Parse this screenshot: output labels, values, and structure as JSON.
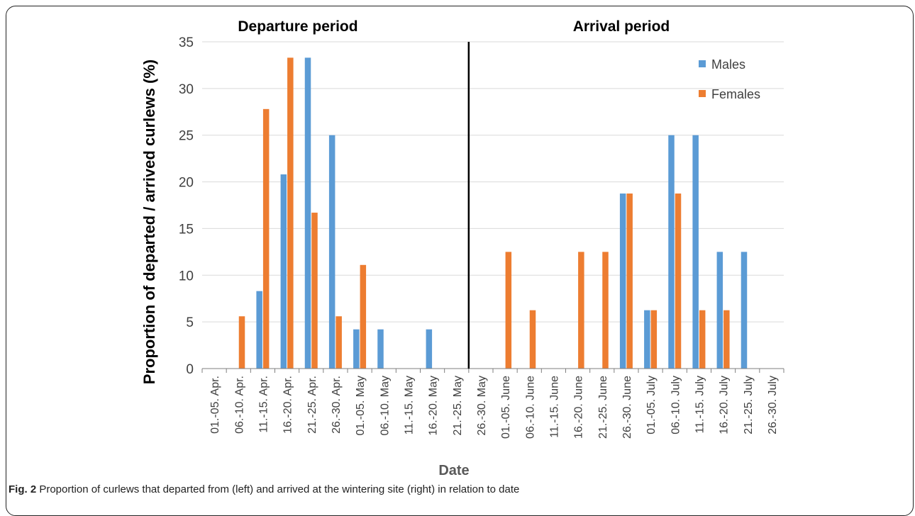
{
  "chart_data": {
    "type": "bar",
    "panel_labels": [
      "Departure period",
      "Arrival period"
    ],
    "ylabel": "Proportion of departed / arrived curlews (%)",
    "xlabel": "Date",
    "ylim": [
      0,
      35
    ],
    "yticks": [
      0,
      5,
      10,
      15,
      20,
      25,
      30,
      35
    ],
    "grid": true,
    "legend_position": "top-right",
    "categories": [
      "01.-05. Apr.",
      "06.-10. Apr.",
      "11.-15. Apr.",
      "16.-20. Apr.",
      "21.-25. Apr.",
      "26.-30. Apr.",
      "01.-05. May",
      "06.-10. May",
      "11.-15. May",
      "16.-20. May",
      "21.-25. May",
      "26.-30. May",
      "01.-05. June",
      "06.-10. June",
      "11.-15. June",
      "16.-20. June",
      "21.-25. June",
      "26.-30. June",
      "01.-05. July",
      "06.-10. July",
      "11.-15. July",
      "16.-20. July",
      "21.-25. July",
      "26.-30. July"
    ],
    "series": [
      {
        "name": "Males",
        "color": "#5b9bd5",
        "values": [
          0,
          0,
          8.3,
          20.8,
          33.3,
          25.0,
          4.2,
          4.2,
          0,
          4.2,
          0,
          0,
          0,
          0,
          0,
          0,
          0,
          18.75,
          6.25,
          25.0,
          25.0,
          12.5,
          12.5,
          0
        ]
      },
      {
        "name": "Females",
        "color": "#ed7d31",
        "values": [
          0,
          5.6,
          27.8,
          33.3,
          16.7,
          5.6,
          11.1,
          0,
          0,
          0,
          0,
          0,
          12.5,
          6.25,
          0,
          12.5,
          12.5,
          18.75,
          6.25,
          18.75,
          6.25,
          6.25,
          0,
          0
        ]
      }
    ],
    "divider_after_category": "21.-25. May"
  },
  "caption": {
    "label": "Fig. 2",
    "text": " Proportion of curlews that departed from (left) and arrived at the wintering site (right) in relation to date"
  }
}
